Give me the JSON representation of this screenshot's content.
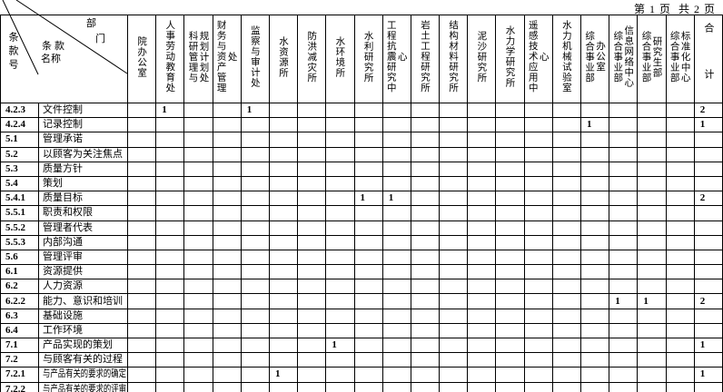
{
  "page": {
    "label": "第 1 页  共 2 页"
  },
  "corner": {
    "dept_char_1": "部",
    "dept_char_2": "门",
    "clause_name_line1": "条 款",
    "clause_name_line2": "名称",
    "clause_no": "条款号"
  },
  "columns": [
    "院办公室",
    "人事劳动教育处",
    "科研管理与\n规划计划处",
    "财务与资产管理处",
    "监察与审计处",
    "水资源所",
    "防洪减灾所",
    "水环境所",
    "水利研究所",
    "工程抗震研究中心",
    "岩土工程研究所",
    "结构材料研究所",
    "泥沙研究所",
    "水力学研究所",
    "遥感技术应用中心",
    "水力机械试验室",
    "综合事业部\n办公室",
    "综合事业部\n信息网络中心",
    "综合事业部\n研究生部",
    "综合事业部\n标准化中心",
    "合 计"
  ],
  "rows": [
    {
      "code": "4.2.3",
      "name": "文件控制",
      "cells": [
        "",
        "1",
        "",
        "",
        "1",
        "",
        "",
        "",
        "",
        "",
        "",
        "",
        "",
        "",
        "",
        "",
        "",
        "",
        "",
        "",
        "2"
      ]
    },
    {
      "code": "4.2.4",
      "name": "记录控制",
      "cells": [
        "",
        "",
        "",
        "",
        "",
        "",
        "",
        "",
        "",
        "",
        "",
        "",
        "",
        "",
        "",
        "",
        "1",
        "",
        "",
        "",
        "1"
      ]
    },
    {
      "code": "5.1",
      "name": "管理承诺",
      "cells": [
        "",
        "",
        "",
        "",
        "",
        "",
        "",
        "",
        "",
        "",
        "",
        "",
        "",
        "",
        "",
        "",
        "",
        "",
        "",
        "",
        ""
      ]
    },
    {
      "code": "5.2",
      "name": "以顾客为关注焦点",
      "cells": [
        "",
        "",
        "",
        "",
        "",
        "",
        "",
        "",
        "",
        "",
        "",
        "",
        "",
        "",
        "",
        "",
        "",
        "",
        "",
        "",
        ""
      ]
    },
    {
      "code": "5.3",
      "name": "质量方针",
      "cells": [
        "",
        "",
        "",
        "",
        "",
        "",
        "",
        "",
        "",
        "",
        "",
        "",
        "",
        "",
        "",
        "",
        "",
        "",
        "",
        "",
        ""
      ]
    },
    {
      "code": "5.4",
      "name": "策划",
      "cells": [
        "",
        "",
        "",
        "",
        "",
        "",
        "",
        "",
        "",
        "",
        "",
        "",
        "",
        "",
        "",
        "",
        "",
        "",
        "",
        "",
        ""
      ]
    },
    {
      "code": "5.4.1",
      "name": "质量目标",
      "cells": [
        "",
        "",
        "",
        "",
        "",
        "",
        "",
        "",
        "1",
        "1",
        "",
        "",
        "",
        "",
        "",
        "",
        "",
        "",
        "",
        "",
        "2"
      ]
    },
    {
      "code": "5.5.1",
      "name": "职责和权限",
      "cells": [
        "",
        "",
        "",
        "",
        "",
        "",
        "",
        "",
        "",
        "",
        "",
        "",
        "",
        "",
        "",
        "",
        "",
        "",
        "",
        "",
        ""
      ]
    },
    {
      "code": "5.5.2",
      "name": "管理者代表",
      "cells": [
        "",
        "",
        "",
        "",
        "",
        "",
        "",
        "",
        "",
        "",
        "",
        "",
        "",
        "",
        "",
        "",
        "",
        "",
        "",
        "",
        ""
      ]
    },
    {
      "code": "5.5.3",
      "name": "内部沟通",
      "cells": [
        "",
        "",
        "",
        "",
        "",
        "",
        "",
        "",
        "",
        "",
        "",
        "",
        "",
        "",
        "",
        "",
        "",
        "",
        "",
        "",
        ""
      ]
    },
    {
      "code": "5.6",
      "name": "管理评审",
      "cells": [
        "",
        "",
        "",
        "",
        "",
        "",
        "",
        "",
        "",
        "",
        "",
        "",
        "",
        "",
        "",
        "",
        "",
        "",
        "",
        "",
        ""
      ]
    },
    {
      "code": "6.1",
      "name": "资源提供",
      "cells": [
        "",
        "",
        "",
        "",
        "",
        "",
        "",
        "",
        "",
        "",
        "",
        "",
        "",
        "",
        "",
        "",
        "",
        "",
        "",
        "",
        ""
      ]
    },
    {
      "code": "6.2",
      "name": "人力资源",
      "cells": [
        "",
        "",
        "",
        "",
        "",
        "",
        "",
        "",
        "",
        "",
        "",
        "",
        "",
        "",
        "",
        "",
        "",
        "",
        "",
        "",
        ""
      ]
    },
    {
      "code": "6.2.2",
      "name": "能力、意识和培训",
      "cells": [
        "",
        "",
        "",
        "",
        "",
        "",
        "",
        "",
        "",
        "",
        "",
        "",
        "",
        "",
        "",
        "",
        "",
        "1",
        "1",
        "",
        "2"
      ]
    },
    {
      "code": "6.3",
      "name": "基础设施",
      "cells": [
        "",
        "",
        "",
        "",
        "",
        "",
        "",
        "",
        "",
        "",
        "",
        "",
        "",
        "",
        "",
        "",
        "",
        "",
        "",
        "",
        ""
      ]
    },
    {
      "code": "6.4",
      "name": "工作环境",
      "cells": [
        "",
        "",
        "",
        "",
        "",
        "",
        "",
        "",
        "",
        "",
        "",
        "",
        "",
        "",
        "",
        "",
        "",
        "",
        "",
        "",
        ""
      ]
    },
    {
      "code": "7.1",
      "name": "产品实现的策划",
      "cells": [
        "",
        "",
        "",
        "",
        "",
        "",
        "",
        "1",
        "",
        "",
        "",
        "",
        "",
        "",
        "",
        "",
        "",
        "",
        "",
        "",
        "1"
      ]
    },
    {
      "code": "7.2",
      "name": "与顾客有关的过程",
      "cells": [
        "",
        "",
        "",
        "",
        "",
        "",
        "",
        "",
        "",
        "",
        "",
        "",
        "",
        "",
        "",
        "",
        "",
        "",
        "",
        "",
        ""
      ]
    },
    {
      "code": "7.2.1",
      "name": "与产品有关的要求的确定",
      "cells": [
        "",
        "",
        "",
        "",
        "",
        "1",
        "",
        "",
        "",
        "",
        "",
        "",
        "",
        "",
        "",
        "",
        "",
        "",
        "",
        "",
        "1"
      ]
    },
    {
      "code": "7.2.2",
      "name": "与产品有关的要求的评审",
      "cells": [
        "",
        "",
        "",
        "",
        "",
        "",
        "",
        "",
        "",
        "",
        "",
        "",
        "",
        "",
        "",
        "",
        "",
        "",
        "",
        "",
        ""
      ]
    }
  ]
}
